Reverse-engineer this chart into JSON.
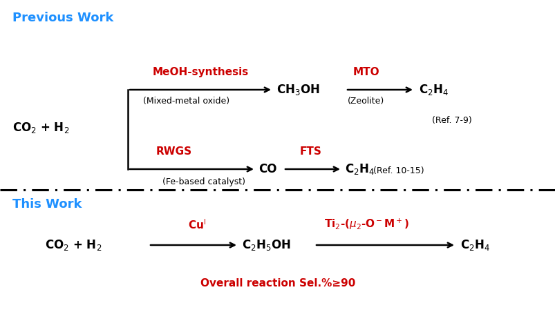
{
  "bg_color": "#ffffff",
  "cyan_color": "#1E90FF",
  "red_color": "#CC0000",
  "black_color": "#000000",
  "fig_width": 8.04,
  "fig_height": 4.65,
  "dpi": 100,
  "prev_work_label": "Previous Work",
  "this_work_label": "This Work",
  "reactant": "CO$_2$ + H$_2$",
  "meoh": "CH$_3$OH",
  "c2h4_top": "C$_2$H$_4$",
  "co": "CO",
  "c2h4_bot": "C$_2$H$_4$",
  "meoh_synthesis": "MeOH-synthesis",
  "mixed_metal": "(Mixed-metal oxide)",
  "mto": "MTO",
  "zeolite": "(Zeolite)",
  "ref79": "(Ref. 7-9)",
  "rwgs": "RWGS",
  "fts": "FTS",
  "fe_based": "(Fe-based catalyst)",
  "ref1015": "(Ref. 10-15)",
  "reactant2": "CO$_2$ + H$_2$",
  "cu1": "Cu$^{\\rm I}$",
  "c2h5oh": "C$_2$H$_5$OH",
  "ti2": "Ti$_2$-($\\mu_2$-O$^-$M$^+$)",
  "c2h4_2": "C$_2$H$_4$",
  "overall": "Overall reaction Sel.%≥90",
  "fs_title": 13,
  "fs_main": 12,
  "fs_sub": 9,
  "fs_label": 11,
  "fs_ref": 9
}
